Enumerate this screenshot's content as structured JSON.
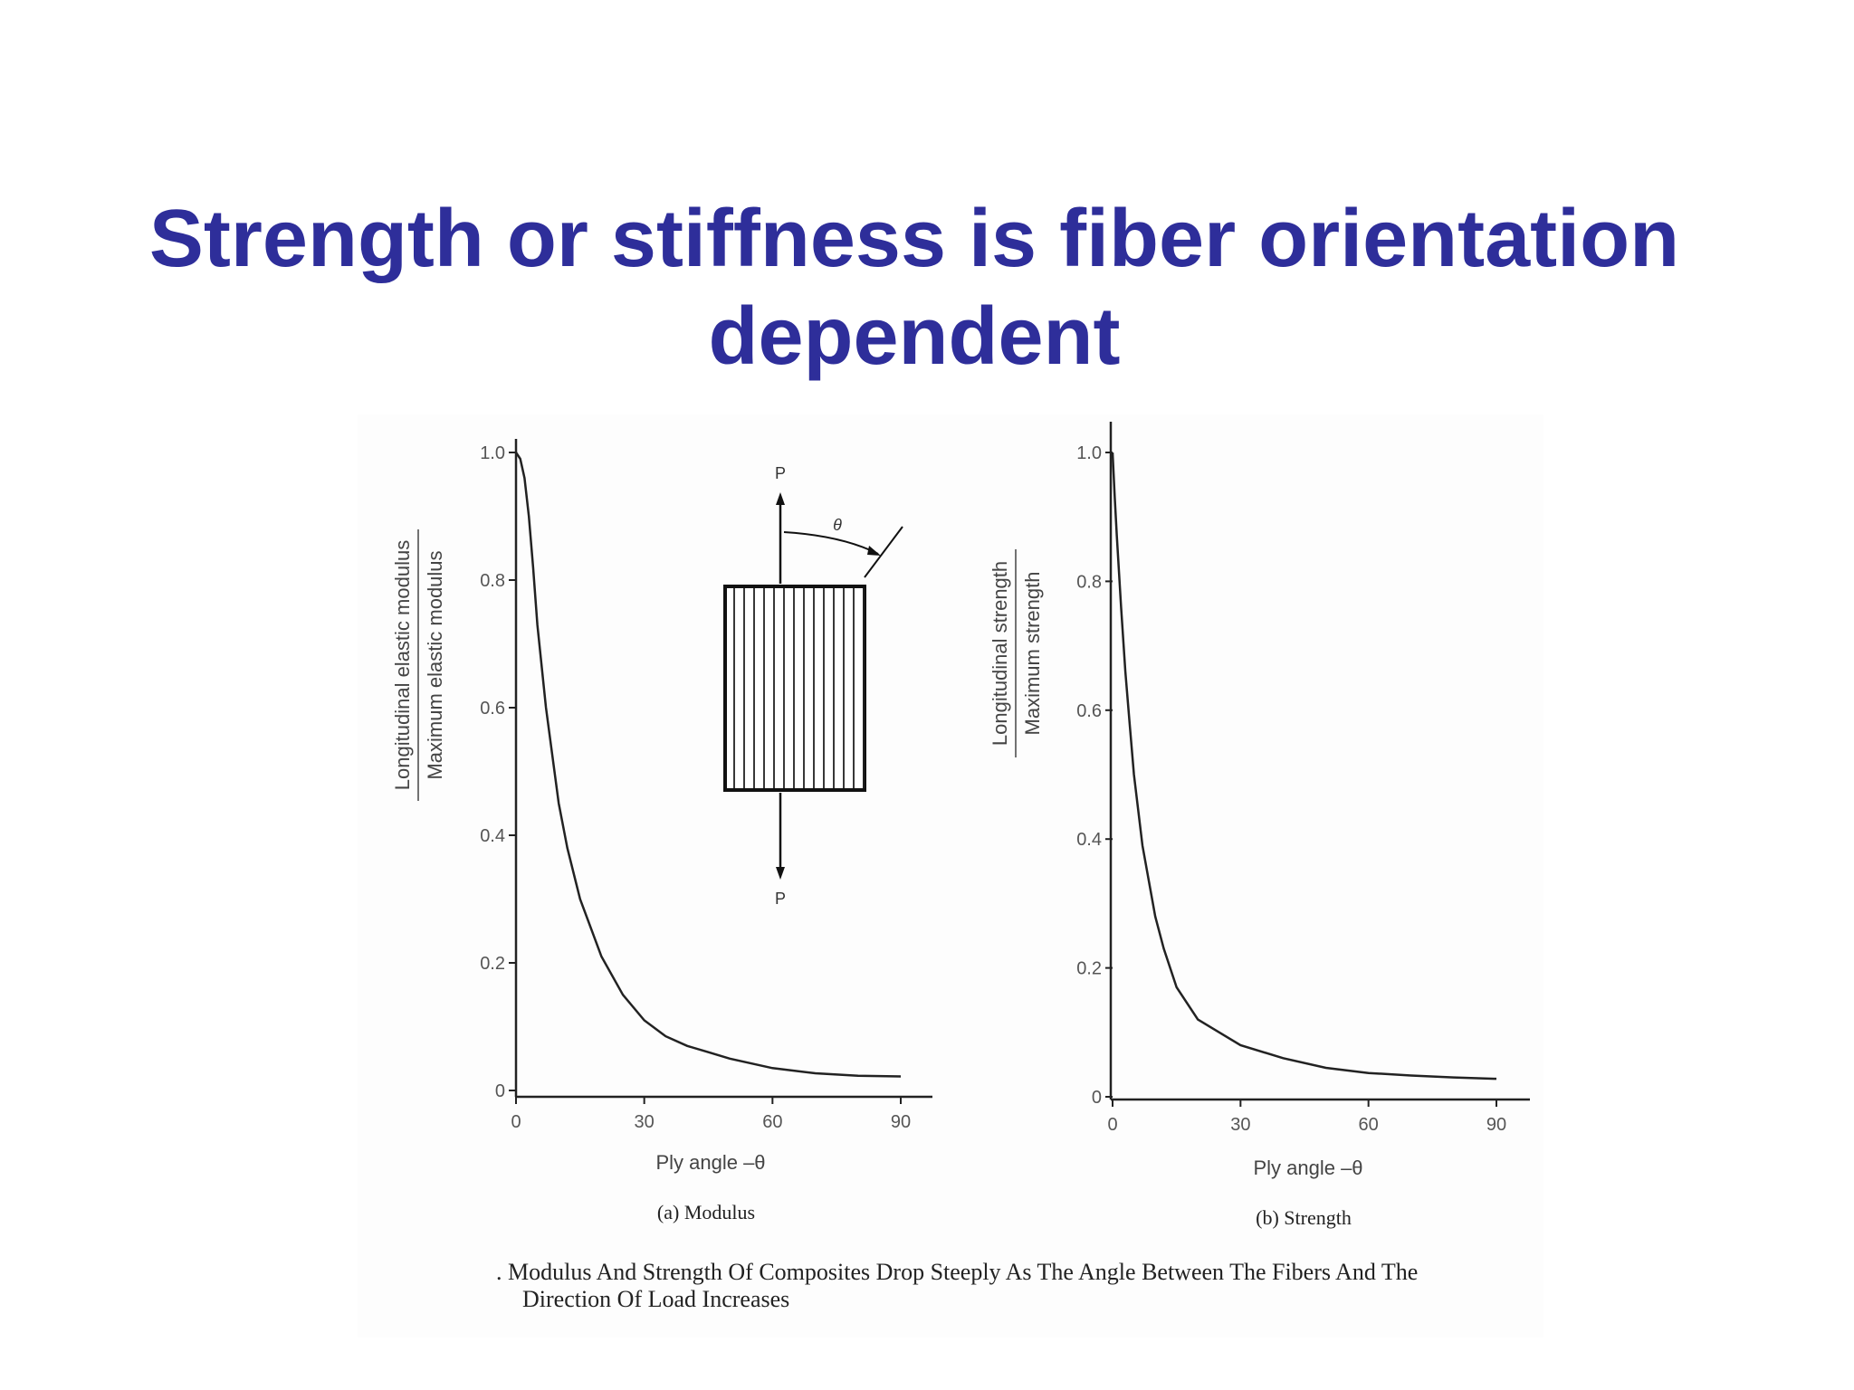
{
  "slide": {
    "title_line1": "Strength or stiffness is fiber orientation",
    "title_line2": "dependent",
    "title_color": "#2e2e9a"
  },
  "chart_data": [
    {
      "type": "line",
      "panel_label": "(a) Modulus",
      "xlabel": "Ply angle –θ",
      "ylabel_numerator": "Longitudinal elastic modulus",
      "ylabel_denominator": "Maximum elastic modulus",
      "xticks": [
        "0",
        "30",
        "60",
        "90"
      ],
      "yticks": [
        "0",
        "0.2",
        "0.4",
        "0.6",
        "0.8",
        "1.0"
      ],
      "xlim": [
        0,
        90
      ],
      "ylim": [
        0,
        1.0
      ],
      "grid": false,
      "series": [
        {
          "x": [
            0,
            1,
            2,
            3,
            4,
            5,
            7,
            10,
            12,
            15,
            20,
            25,
            30,
            35,
            40,
            45,
            50,
            60,
            70,
            80,
            90
          ],
          "y": [
            1.0,
            0.99,
            0.96,
            0.9,
            0.82,
            0.73,
            0.6,
            0.45,
            0.38,
            0.3,
            0.21,
            0.15,
            0.11,
            0.085,
            0.07,
            0.06,
            0.05,
            0.035,
            0.027,
            0.023,
            0.022
          ]
        }
      ]
    },
    {
      "type": "line",
      "panel_label": "(b) Strength",
      "xlabel": "Ply angle –θ",
      "ylabel_numerator": "Longitudinal strength",
      "ylabel_denominator": "Maximum strength",
      "xticks": [
        "0",
        "30",
        "60",
        "90"
      ],
      "yticks": [
        "0",
        "0.2",
        "0.4",
        "0.6",
        "0.8",
        "1.0"
      ],
      "xlim": [
        0,
        90
      ],
      "ylim": [
        0,
        1.0
      ],
      "grid": false,
      "series": [
        {
          "x": [
            0,
            0.5,
            1,
            2,
            3,
            4,
            5,
            7,
            10,
            12,
            15,
            20,
            25,
            30,
            40,
            50,
            60,
            70,
            80,
            90
          ],
          "y": [
            1.0,
            0.93,
            0.87,
            0.76,
            0.66,
            0.58,
            0.5,
            0.39,
            0.28,
            0.23,
            0.17,
            0.12,
            0.1,
            0.08,
            0.06,
            0.045,
            0.037,
            0.033,
            0.03,
            0.028
          ]
        }
      ]
    }
  ],
  "diagram": {
    "load_top": "P",
    "load_bottom": "P",
    "angle_symbol": "θ"
  },
  "caption": {
    "line1": ". Modulus And Strength Of Composites Drop Steeply As The Angle Between The Fibers And The",
    "line2": "Direction Of Load Increases"
  }
}
